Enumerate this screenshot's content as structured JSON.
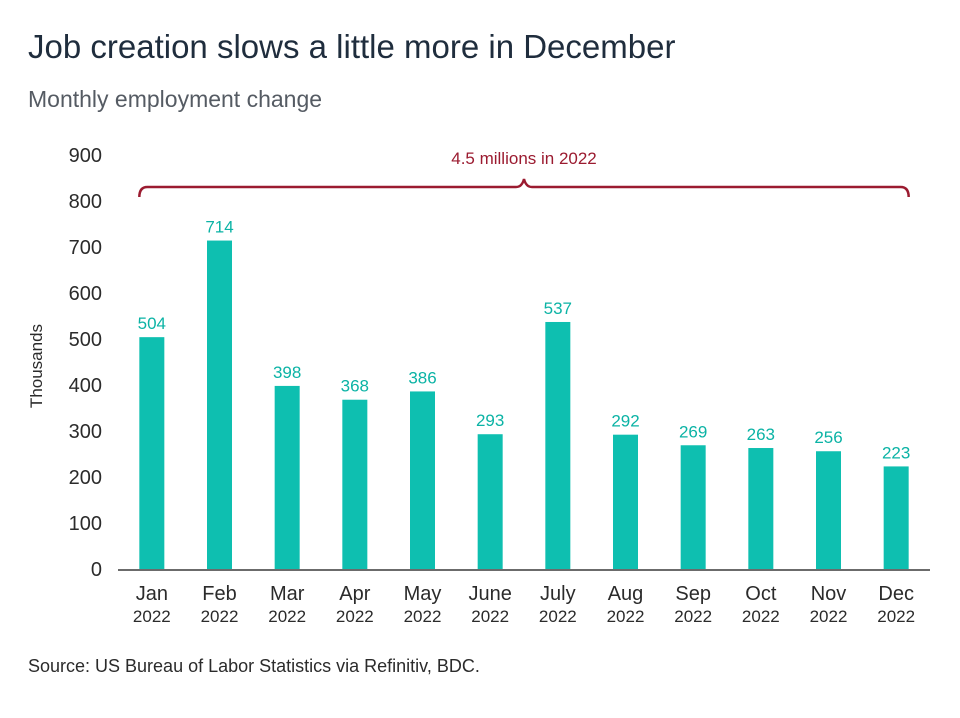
{
  "title": "Job creation slows a little more in December",
  "subtitle": "Monthly employment change",
  "source": "Source: US Bureau of Labor Statistics via Refinitiv, BDC.",
  "colors": {
    "bar": "#0ebfb0",
    "label": "#0bb3a5",
    "annotation": "#9b1b30",
    "axis": "#6b6b6b"
  },
  "chart_data": {
    "type": "bar",
    "categories": [
      "Jan",
      "Feb",
      "Mar",
      "Apr",
      "May",
      "June",
      "July",
      "Aug",
      "Sep",
      "Oct",
      "Nov",
      "Dec"
    ],
    "category_years": [
      "2022",
      "2022",
      "2022",
      "2022",
      "2022",
      "2022",
      "2022",
      "2022",
      "2022",
      "2022",
      "2022",
      "2022"
    ],
    "values": [
      504,
      714,
      398,
      368,
      386,
      293,
      537,
      292,
      269,
      263,
      256,
      223
    ],
    "ylabel": "Thousands",
    "ylim": [
      0,
      900
    ],
    "yticks": [
      0,
      100,
      200,
      300,
      400,
      500,
      600,
      700,
      800,
      900
    ],
    "grid": false,
    "data_labels": true,
    "annotation": {
      "text": "4.5 millions in 2022",
      "spans": [
        "Jan",
        "Dec"
      ]
    }
  }
}
